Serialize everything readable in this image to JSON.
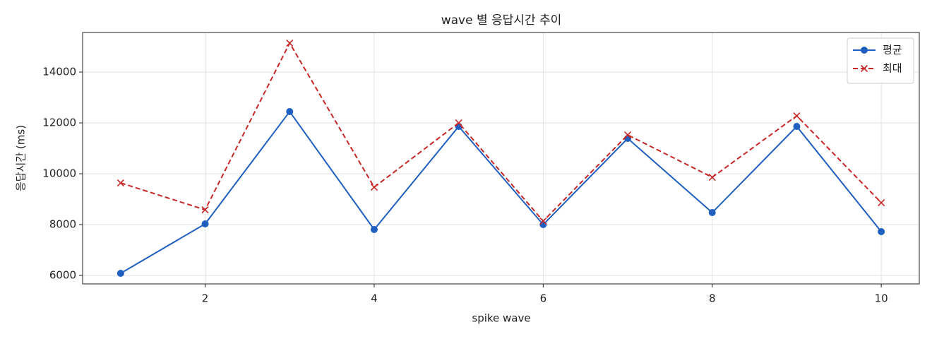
{
  "chart_data": {
    "type": "line",
    "title": "wave 별 응답시간 추이",
    "x_label": "spike wave",
    "y_label": "응답시간 (ms)",
    "x": [
      1,
      2,
      3,
      4,
      5,
      6,
      7,
      8,
      9,
      10
    ],
    "series": [
      {
        "name": "평균",
        "color": "#1f5fbf",
        "marker": "o",
        "linestyle": "solid",
        "values": [
          6083,
          8028,
          12444,
          7806,
          11861,
          8000,
          11389,
          8472,
          11861,
          7722
        ]
      },
      {
        "name": "최대",
        "color": "#c62828",
        "marker": "x",
        "linestyle": "dashed",
        "values": [
          9639,
          8583,
          15139,
          9472,
          12000,
          8139,
          11528,
          9861,
          12278,
          8861
        ]
      }
    ],
    "xlim": [
      0.55,
      10.45
    ],
    "xticks": [
      2,
      4,
      6,
      8,
      10
    ],
    "ylim": [
      5667,
      15556
    ],
    "yticks": [
      6000,
      8000,
      10000,
      12000,
      14000
    ],
    "grid": true,
    "legend": "upper right"
  }
}
